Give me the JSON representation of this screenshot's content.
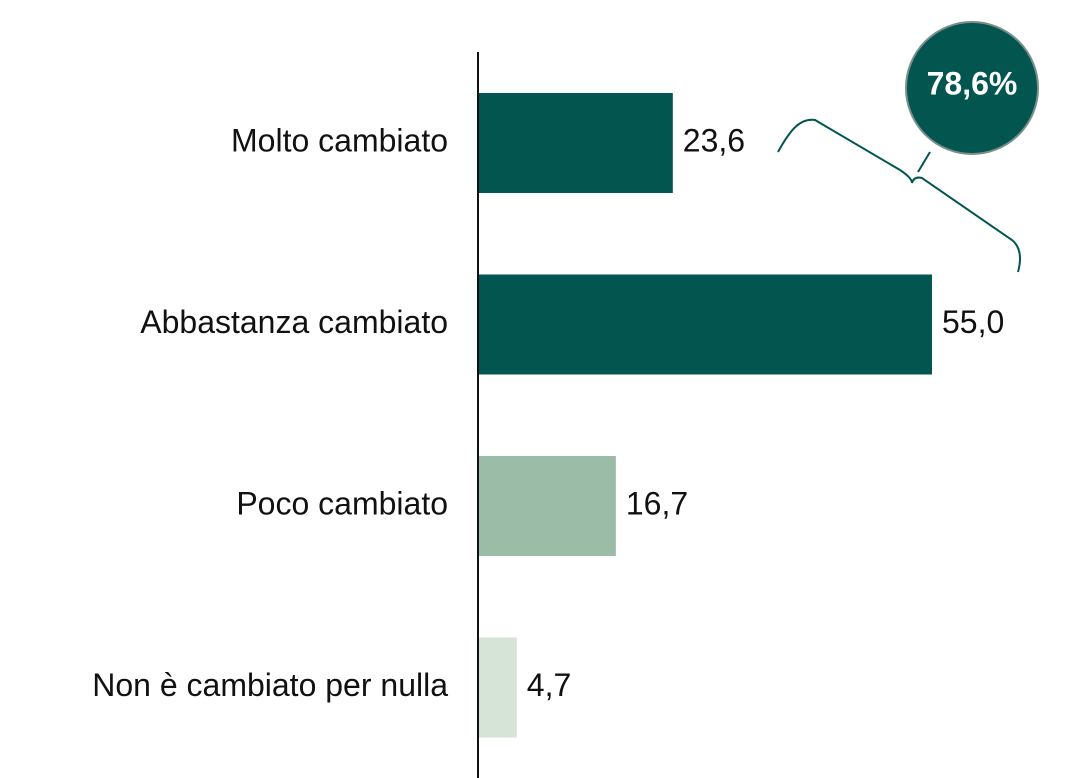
{
  "chart_data": {
    "type": "bar",
    "orientation": "horizontal",
    "categories": [
      "Molto cambiato",
      "Abbastanza cambiato",
      "Poco cambiato",
      "Non è cambiato per nulla"
    ],
    "values": [
      23.6,
      55.0,
      16.7,
      4.7
    ],
    "value_labels": [
      "23,6",
      "55,0",
      "16,7",
      "4,7"
    ],
    "colors": [
      "#02564f",
      "#02564f",
      "#9bbca6",
      "#d6e4d8"
    ],
    "annotation": "78,6%"
  }
}
